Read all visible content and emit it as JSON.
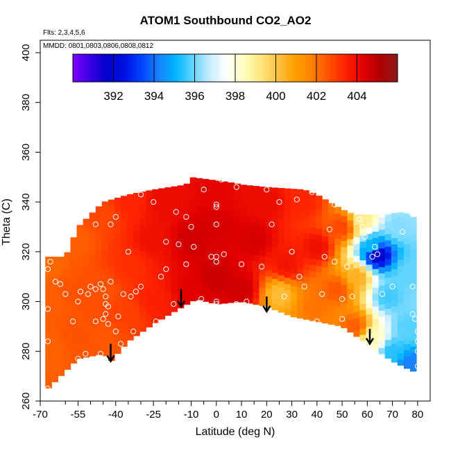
{
  "chart_data": {
    "type": "heatmap",
    "title": "ATOM1 Southbound CO2_AO2",
    "subtitle_lines": [
      "Flts: 2,3,4,5,6",
      "MMDD: 0801,0803,0806,0808,0812"
    ],
    "xlabel": "Latitude (deg N)",
    "ylabel": "Theta (C)",
    "xlim": [
      -70,
      85
    ],
    "ylim": [
      260,
      405
    ],
    "x_ticks": [
      -70,
      -55,
      -40,
      -25,
      -10,
      0,
      10,
      20,
      30,
      40,
      50,
      60,
      70,
      80
    ],
    "x_tick_labels": [
      "-70",
      "-55",
      "-40",
      "-25",
      "-10",
      "0",
      "10",
      "20",
      "30",
      "40",
      "50",
      "60",
      "70",
      "80"
    ],
    "x_minor_ticks": [
      -60,
      -50,
      -45,
      -35,
      -30,
      -20,
      -15,
      -5,
      5,
      15,
      25,
      35,
      45,
      55,
      65,
      75
    ],
    "y_ticks": [
      260,
      280,
      300,
      320,
      340,
      360,
      380,
      400
    ],
    "y_tick_labels": [
      "260",
      "280",
      "300",
      "320",
      "340",
      "360",
      "380",
      "400"
    ],
    "colorbar": {
      "range": [
        390,
        406
      ],
      "tick_values": [
        392,
        394,
        396,
        398,
        400,
        402,
        404
      ],
      "tick_labels": [
        "392",
        "394",
        "396",
        "398",
        "400",
        "402",
        "404"
      ],
      "colors": [
        "#7f00ff",
        "#3a00e6",
        "#0000cc",
        "#0010e0",
        "#0040ff",
        "#1a80ff",
        "#00b4ff",
        "#60d4ff",
        "#c8ecff",
        "#ffffff",
        "#ffffc0",
        "#ffe680",
        "#ffc040",
        "#ffa000",
        "#ff8000",
        "#ff5000",
        "#ff2000",
        "#e00000",
        "#b00000",
        "#8b1a1a"
      ]
    },
    "colors": {
      "frame": "#000000",
      "marker": "#ffffff",
      "arrow": "#000000"
    },
    "field_bottom": [
      [
        -68,
        264
      ],
      [
        -55,
        277
      ],
      [
        -45,
        279
      ],
      [
        -42,
        276
      ],
      [
        -35,
        284
      ],
      [
        -25,
        291
      ],
      [
        -15,
        297
      ],
      [
        -8,
        301
      ],
      [
        0,
        299
      ],
      [
        10,
        300
      ],
      [
        20,
        298
      ],
      [
        30,
        294
      ],
      [
        40,
        292
      ],
      [
        50,
        290
      ],
      [
        60,
        283
      ],
      [
        70,
        276
      ],
      [
        78,
        272
      ]
    ],
    "field_top": [
      [
        -68,
        318
      ],
      [
        -60,
        318
      ],
      [
        -55,
        330
      ],
      [
        -45,
        340
      ],
      [
        -35,
        343
      ],
      [
        -25,
        345
      ],
      [
        -12,
        347
      ],
      [
        -10,
        350
      ],
      [
        5,
        348
      ],
      [
        10,
        347
      ],
      [
        20,
        346
      ],
      [
        35,
        345
      ],
      [
        40,
        343
      ],
      [
        50,
        337
      ],
      [
        55,
        335
      ],
      [
        65,
        335
      ],
      [
        75,
        336
      ],
      [
        78,
        334
      ],
      [
        78,
        290
      ]
    ],
    "field_samples": [
      {
        "lat": -66,
        "theta": 280,
        "co2": 402.3
      },
      {
        "lat": -66,
        "theta": 300,
        "co2": 402.4
      },
      {
        "lat": -66,
        "theta": 315,
        "co2": 402.2
      },
      {
        "lat": -55,
        "theta": 285,
        "co2": 402.6
      },
      {
        "lat": -55,
        "theta": 305,
        "co2": 402.6
      },
      {
        "lat": -55,
        "theta": 325,
        "co2": 402.4
      },
      {
        "lat": -45,
        "theta": 285,
        "co2": 402.5
      },
      {
        "lat": -45,
        "theta": 305,
        "co2": 402.6
      },
      {
        "lat": -45,
        "theta": 335,
        "co2": 402.8
      },
      {
        "lat": -35,
        "theta": 295,
        "co2": 402.9
      },
      {
        "lat": -35,
        "theta": 315,
        "co2": 403.2
      },
      {
        "lat": -35,
        "theta": 340,
        "co2": 403.4
      },
      {
        "lat": -25,
        "theta": 300,
        "co2": 403.5
      },
      {
        "lat": -25,
        "theta": 325,
        "co2": 403.9
      },
      {
        "lat": -20,
        "theta": 340,
        "co2": 404.0
      },
      {
        "lat": -10,
        "theta": 305,
        "co2": 404.3
      },
      {
        "lat": -10,
        "theta": 325,
        "co2": 404.6
      },
      {
        "lat": 0,
        "theta": 310,
        "co2": 404.7
      },
      {
        "lat": 0,
        "theta": 330,
        "co2": 404.5
      },
      {
        "lat": 0,
        "theta": 345,
        "co2": 404.2
      },
      {
        "lat": 10,
        "theta": 305,
        "co2": 404.6
      },
      {
        "lat": 15,
        "theta": 325,
        "co2": 404.5
      },
      {
        "lat": 20,
        "theta": 340,
        "co2": 404.0
      },
      {
        "lat": 25,
        "theta": 303,
        "co2": 400.2
      },
      {
        "lat": 28,
        "theta": 315,
        "co2": 403.8
      },
      {
        "lat": 35,
        "theta": 340,
        "co2": 403.4
      },
      {
        "lat": 40,
        "theta": 298,
        "co2": 402.0
      },
      {
        "lat": 40,
        "theta": 322,
        "co2": 403.9
      },
      {
        "lat": 48,
        "theta": 305,
        "co2": 402.5
      },
      {
        "lat": 50,
        "theta": 330,
        "co2": 402.8
      },
      {
        "lat": 55,
        "theta": 290,
        "co2": 402.4
      },
      {
        "lat": 56,
        "theta": 310,
        "co2": 400.5
      },
      {
        "lat": 58,
        "theta": 333,
        "co2": 399.0
      },
      {
        "lat": 62,
        "theta": 285,
        "co2": 398.5
      },
      {
        "lat": 62,
        "theta": 322,
        "co2": 395.2
      },
      {
        "lat": 64,
        "theta": 319,
        "co2": 391.5
      },
      {
        "lat": 68,
        "theta": 302,
        "co2": 395.6
      },
      {
        "lat": 70,
        "theta": 280,
        "co2": 395.4
      },
      {
        "lat": 72,
        "theta": 330,
        "co2": 396.2
      },
      {
        "lat": 76,
        "theta": 290,
        "co2": 395.8
      },
      {
        "lat": 77,
        "theta": 275,
        "co2": 394.2
      },
      {
        "lat": 77,
        "theta": 312,
        "co2": 395.9
      }
    ],
    "observation_points": [
      [
        -67,
        265
      ],
      [
        -67,
        284
      ],
      [
        -67,
        297
      ],
      [
        -67,
        313
      ],
      [
        -66,
        316
      ],
      [
        -64,
        308
      ],
      [
        -62,
        307
      ],
      [
        -60,
        303
      ],
      [
        -57,
        292
      ],
      [
        -55,
        277
      ],
      [
        -55,
        300
      ],
      [
        -54,
        304
      ],
      [
        -52,
        279
      ],
      [
        -51,
        303
      ],
      [
        -50,
        306
      ],
      [
        -48,
        292
      ],
      [
        -48,
        305
      ],
      [
        -46,
        279
      ],
      [
        -46,
        307
      ],
      [
        -45,
        293
      ],
      [
        -45,
        305
      ],
      [
        -44,
        295
      ],
      [
        -44,
        299
      ],
      [
        -44,
        302
      ],
      [
        -43,
        298
      ],
      [
        -43,
        291
      ],
      [
        -42,
        308
      ],
      [
        -42,
        331
      ],
      [
        -40,
        288
      ],
      [
        -39,
        294
      ],
      [
        -38,
        283
      ],
      [
        -37,
        303
      ],
      [
        -34,
        302
      ],
      [
        -33,
        288
      ],
      [
        -32,
        304
      ],
      [
        -30,
        306
      ],
      [
        -28,
        284
      ],
      [
        -24,
        292
      ],
      [
        -22,
        310
      ],
      [
        -20,
        313
      ],
      [
        -17,
        299
      ],
      [
        -15,
        323
      ],
      [
        -12,
        315
      ],
      [
        -9,
        322
      ],
      [
        -6,
        301
      ],
      [
        -4,
        296
      ],
      [
        -2,
        318
      ],
      [
        0,
        299
      ],
      [
        0,
        300
      ],
      [
        0,
        316
      ],
      [
        0,
        318
      ],
      [
        0,
        331
      ],
      [
        0,
        338
      ],
      [
        0,
        339
      ],
      [
        2,
        349
      ],
      [
        3,
        319
      ],
      [
        8,
        299
      ],
      [
        8,
        346
      ],
      [
        10,
        315
      ],
      [
        12,
        300
      ],
      [
        15,
        348
      ],
      [
        18,
        314
      ],
      [
        20,
        345
      ],
      [
        22,
        331
      ],
      [
        25,
        340
      ],
      [
        27,
        302
      ],
      [
        30,
        320
      ],
      [
        32,
        341
      ],
      [
        33,
        310
      ],
      [
        35,
        306
      ],
      [
        38,
        344
      ],
      [
        40,
        292
      ],
      [
        42,
        303
      ],
      [
        43,
        318
      ],
      [
        45,
        329
      ],
      [
        47,
        339
      ],
      [
        47,
        316
      ],
      [
        50,
        293
      ],
      [
        50,
        301
      ],
      [
        52,
        314
      ],
      [
        54,
        302
      ],
      [
        55,
        324
      ],
      [
        57,
        333
      ],
      [
        58,
        330
      ],
      [
        59,
        326
      ],
      [
        60,
        328
      ],
      [
        62,
        318
      ],
      [
        63,
        322
      ],
      [
        64,
        319
      ],
      [
        66,
        303
      ],
      [
        70,
        306
      ],
      [
        74,
        328
      ],
      [
        77,
        336
      ],
      [
        78,
        306
      ],
      [
        78,
        295
      ],
      [
        79,
        293
      ],
      [
        80,
        288
      ],
      [
        80,
        284
      ],
      [
        80,
        280
      ],
      [
        80,
        274
      ],
      [
        80,
        271
      ],
      [
        -8,
        295
      ],
      [
        -16,
        336
      ],
      [
        -35,
        320
      ],
      [
        -30,
        343
      ],
      [
        -40,
        334
      ],
      [
        -48,
        331
      ],
      [
        -60,
        336
      ],
      [
        -25,
        340
      ],
      [
        -12,
        334
      ],
      [
        -5,
        345
      ],
      [
        -10,
        330
      ],
      [
        -20,
        324
      ]
    ],
    "arrows": [
      {
        "lat": -42,
        "theta_from": 283,
        "theta_to": 276
      },
      {
        "lat": -14,
        "theta_from": 305,
        "theta_to": 298
      },
      {
        "lat": 20,
        "theta_from": 302,
        "theta_to": 296
      },
      {
        "lat": 61,
        "theta_from": 289,
        "theta_to": 283
      }
    ]
  }
}
